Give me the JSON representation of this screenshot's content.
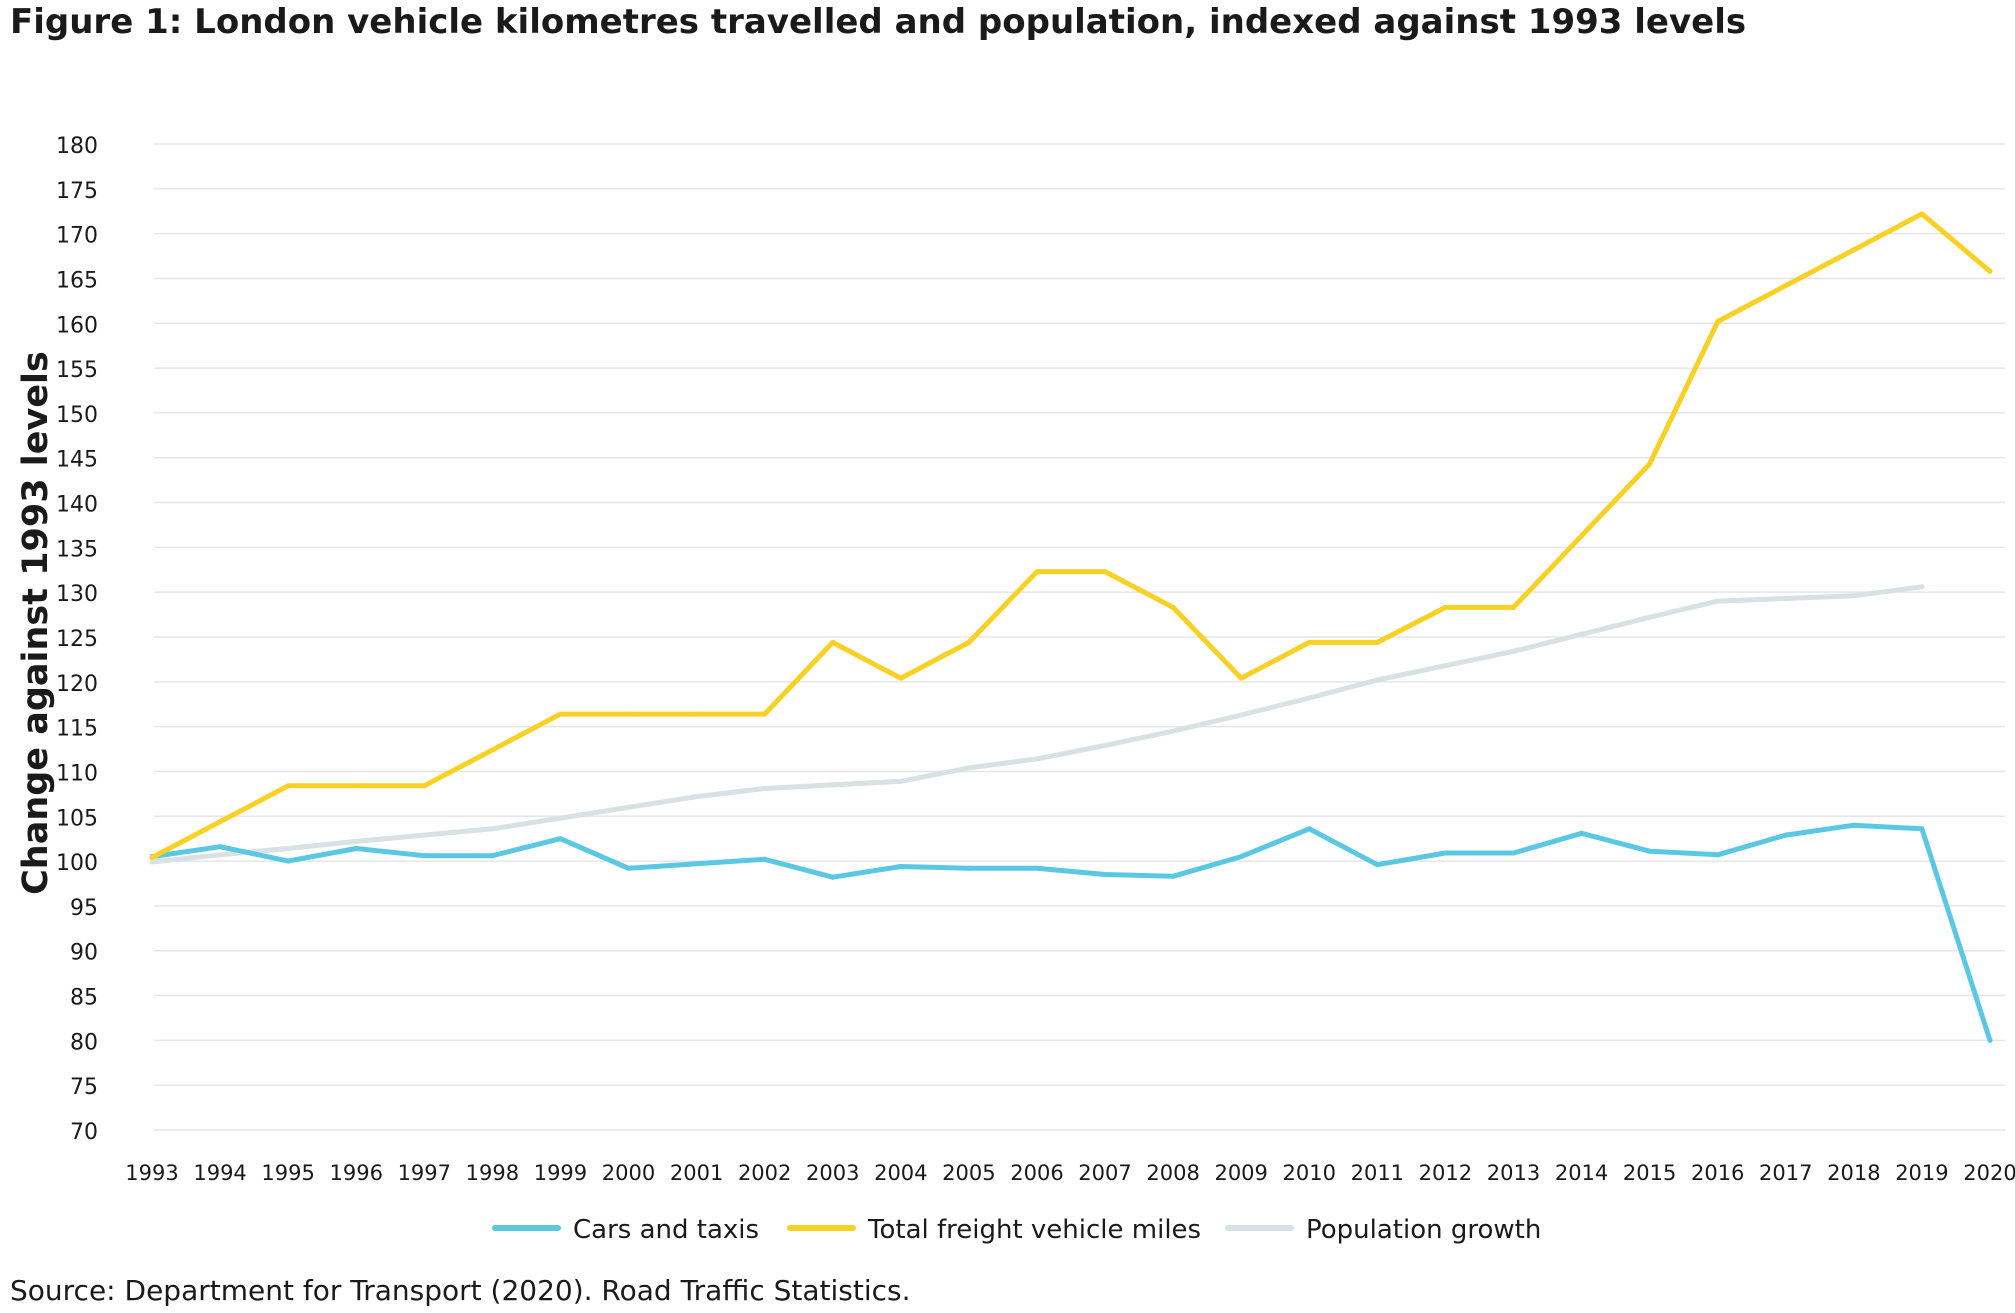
{
  "title": "Figure 1: London vehicle kilometres travelled and population, indexed against 1993 levels",
  "source": "Source: Department for Transport (2020). Road Traffic Statistics.",
  "chart_data": {
    "type": "line",
    "title": "Figure 1: London vehicle kilometres travelled and population, indexed against 1993 levels",
    "xlabel": "",
    "ylabel": "Change against 1993 levels",
    "categories": [
      "1993",
      "1994",
      "1995",
      "1996",
      "1997",
      "1998",
      "1999",
      "2000",
      "2001",
      "2002",
      "2003",
      "2004",
      "2005",
      "2006",
      "2007",
      "2008",
      "2009",
      "2010",
      "2011",
      "2012",
      "2013",
      "2014",
      "2015",
      "2016",
      "2017",
      "2018",
      "2019",
      "2020"
    ],
    "ylim": [
      70,
      180
    ],
    "yticks": [
      70,
      75,
      80,
      85,
      90,
      95,
      100,
      105,
      110,
      115,
      120,
      125,
      130,
      135,
      140,
      145,
      150,
      155,
      160,
      165,
      170,
      175,
      180
    ],
    "grid": true,
    "legend_position": "bottom",
    "series": [
      {
        "name": "Cars and taxis",
        "color": "#5bc8e3",
        "values": [
          100.5,
          101.6,
          100,
          101.4,
          100.6,
          100.6,
          102.5,
          99.2,
          99.7,
          100.2,
          98.2,
          99.4,
          99.2,
          99.2,
          98.5,
          98.3,
          100.5,
          103.6,
          99.6,
          100.9,
          100.9,
          103.1,
          101.1,
          100.7,
          102.9,
          104,
          103.6,
          80
        ]
      },
      {
        "name": "Total freight vehicle miles",
        "color": "#f9d124",
        "values": [
          100.4,
          104.4,
          108.4,
          108.4,
          108.4,
          112.4,
          116.4,
          116.4,
          116.4,
          116.4,
          124.4,
          120.4,
          124.4,
          132.3,
          132.3,
          128.3,
          120.4,
          124.4,
          124.4,
          128.3,
          128.3,
          136.3,
          144.3,
          160.2,
          164.2,
          168.2,
          172.2,
          165.8
        ]
      },
      {
        "name": "Population growth",
        "color": "#d8e1e4",
        "values": [
          99.9,
          100.7,
          101.4,
          102.2,
          102.9,
          103.6,
          104.8,
          106,
          107.2,
          108.1,
          108.5,
          108.9,
          110.4,
          111.4,
          112.9,
          114.5,
          116.3,
          118.2,
          120.2,
          121.8,
          123.4,
          125.3,
          127.2,
          129,
          129.3,
          129.6,
          130.6,
          null
        ]
      }
    ]
  }
}
